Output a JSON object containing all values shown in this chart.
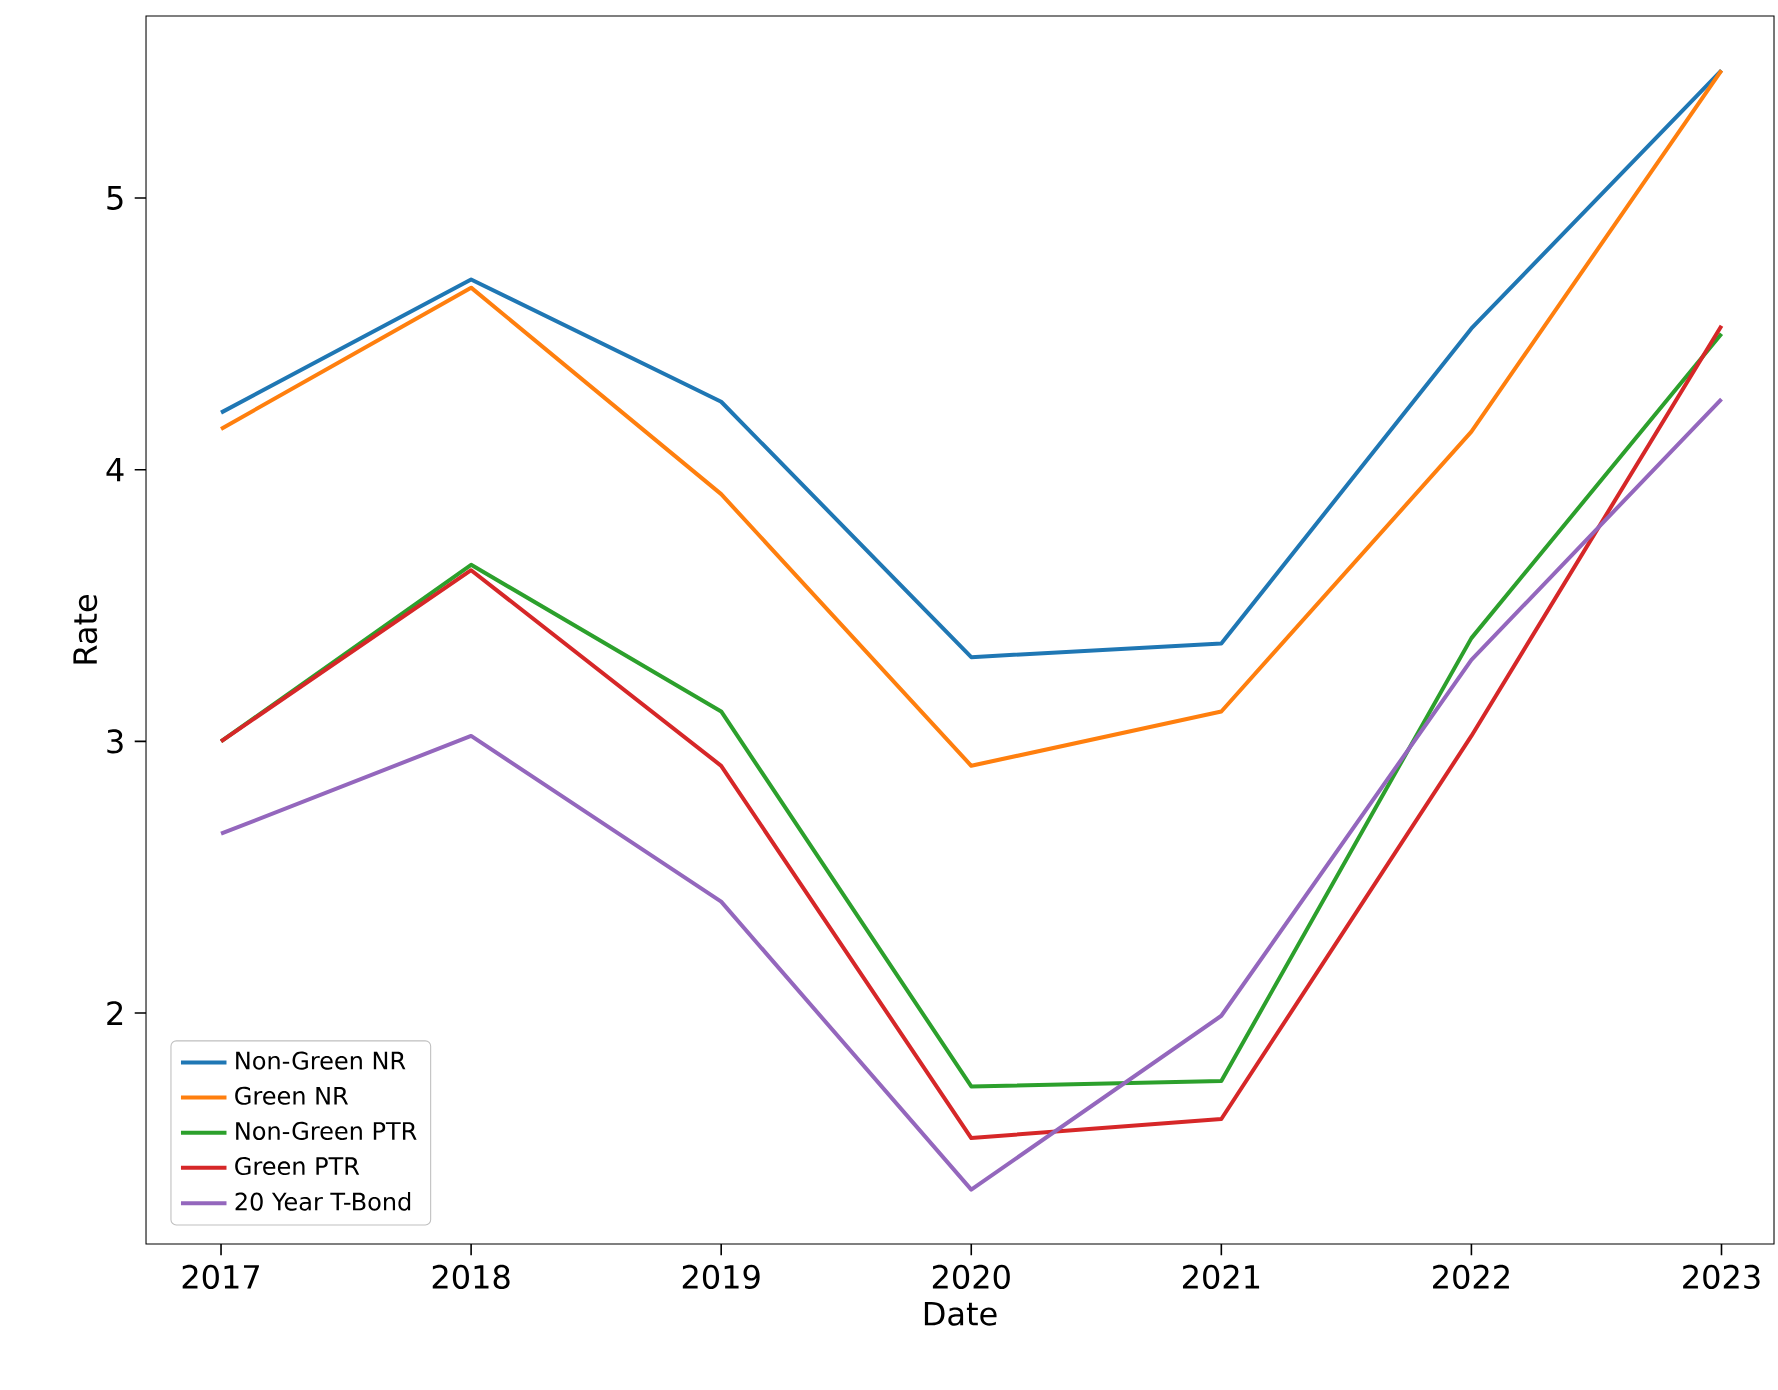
{
  "chart_data": {
    "type": "line",
    "xlabel": "Date",
    "ylabel": "Rate",
    "x": [
      2017,
      2018,
      2019,
      2020,
      2021,
      2022,
      2023
    ],
    "series": [
      {
        "name": "Non-Green NR",
        "color": "#1f77b4",
        "values": [
          4.21,
          4.7,
          4.25,
          3.31,
          3.36,
          4.52,
          5.47
        ]
      },
      {
        "name": "Green NR",
        "color": "#ff7f0e",
        "values": [
          4.15,
          4.67,
          3.91,
          2.91,
          3.11,
          4.14,
          5.47
        ]
      },
      {
        "name": "Non-Green PTR",
        "color": "#2ca02c",
        "values": [
          3.0,
          3.65,
          3.11,
          1.73,
          1.75,
          3.38,
          4.5
        ]
      },
      {
        "name": "Green PTR",
        "color": "#d62728",
        "values": [
          3.0,
          3.63,
          2.91,
          1.54,
          1.61,
          3.02,
          4.53
        ]
      },
      {
        "name": "20 Year T-Bond",
        "color": "#9467bd",
        "values": [
          2.66,
          3.02,
          2.41,
          1.35,
          1.99,
          3.3,
          4.26
        ]
      }
    ],
    "xlim": [
      2016.7,
      2023.21
    ],
    "ylim": [
      1.15,
      5.67
    ],
    "xticks": [
      2017,
      2018,
      2019,
      2020,
      2021,
      2022,
      2023
    ],
    "yticks": [
      2,
      3,
      4,
      5
    ],
    "legend": "bottom left",
    "grid": false,
    "marker": "none",
    "line_style": "solid"
  }
}
